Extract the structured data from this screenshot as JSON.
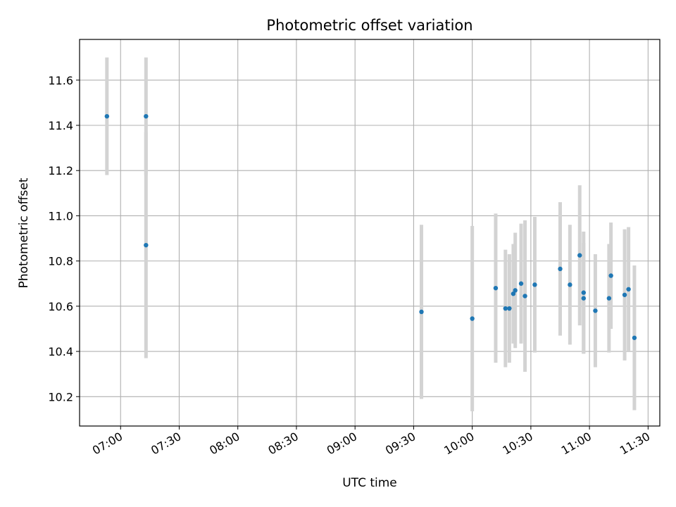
{
  "chart_data": {
    "type": "scatter",
    "title": "Photometric offset variation",
    "xlabel": "UTC time",
    "ylabel": "Photometric offset",
    "xlim": [
      "06:39",
      "11:36"
    ],
    "ylim": [
      10.07,
      11.78
    ],
    "x_ticks": [
      "07:00",
      "07:30",
      "08:00",
      "08:30",
      "09:00",
      "09:30",
      "10:00",
      "10:30",
      "11:00",
      "11:30"
    ],
    "y_ticks": [
      10.2,
      10.4,
      10.6,
      10.8,
      11.0,
      11.2,
      11.4,
      11.6
    ],
    "grid": true,
    "point_color": "#1f77b4",
    "errorbar_color": "#d3d3d3",
    "series": [
      {
        "points": [
          {
            "x": "06:53",
            "y": 11.44,
            "err": 0.26
          },
          {
            "x": "07:13",
            "y": 11.44,
            "err": 0.26
          },
          {
            "x": "07:13",
            "y": 10.87,
            "err": 0.5
          },
          {
            "x": "09:34",
            "y": 10.575,
            "err": 0.385
          },
          {
            "x": "10:00",
            "y": 10.545,
            "err": 0.41
          },
          {
            "x": "10:12",
            "y": 10.68,
            "err": 0.33
          },
          {
            "x": "10:17",
            "y": 10.59,
            "err": 0.26
          },
          {
            "x": "10:19",
            "y": 10.59,
            "err": 0.24
          },
          {
            "x": "10:21",
            "y": 10.655,
            "err": 0.22
          },
          {
            "x": "10:22",
            "y": 10.67,
            "err": 0.255
          },
          {
            "x": "10:25",
            "y": 10.7,
            "err": 0.265
          },
          {
            "x": "10:27",
            "y": 10.645,
            "err": 0.335
          },
          {
            "x": "10:32",
            "y": 10.695,
            "err": 0.3
          },
          {
            "x": "10:45",
            "y": 10.765,
            "err": 0.295
          },
          {
            "x": "10:50",
            "y": 10.695,
            "err": 0.265
          },
          {
            "x": "10:55",
            "y": 10.825,
            "err": 0.31
          },
          {
            "x": "10:57",
            "y": 10.66,
            "err": 0.27
          },
          {
            "x": "10:57",
            "y": 10.635,
            "err": 0.245
          },
          {
            "x": "11:03",
            "y": 10.58,
            "err": 0.25
          },
          {
            "x": "11:10",
            "y": 10.635,
            "err": 0.24
          },
          {
            "x": "11:11",
            "y": 10.735,
            "err": 0.235
          },
          {
            "x": "11:18",
            "y": 10.65,
            "err": 0.29
          },
          {
            "x": "11:20",
            "y": 10.675,
            "err": 0.275
          },
          {
            "x": "11:23",
            "y": 10.46,
            "err": 0.32
          }
        ]
      }
    ]
  }
}
